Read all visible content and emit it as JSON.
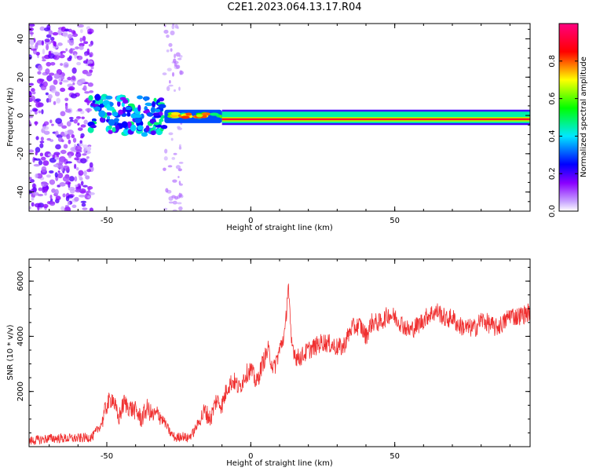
{
  "page": {
    "title": "C2E1.2023.064.13.17.R04"
  },
  "chart_data": [
    {
      "type": "heatmap",
      "xlabel": "Height of straight line (km)",
      "ylabel": "Frequency (Hz)",
      "xlim": [
        -77,
        97
      ],
      "ylim": [
        -50,
        48
      ],
      "xticks": [
        -50,
        0,
        50
      ],
      "yticks": [
        -40,
        -20,
        0,
        20,
        40
      ],
      "grid": false,
      "colorbar": {
        "label": "Normalized spectral amplitude",
        "range": [
          0.0,
          1.0
        ],
        "ticks": [
          "0.0",
          "0.2",
          "0.4",
          "0.6",
          "0.8"
        ],
        "tick_values": [
          0.0,
          0.2,
          0.4,
          0.6,
          0.8
        ],
        "colormap": [
          "#ffffff",
          "#8a00ff",
          "#0000ff",
          "#00ffff",
          "#00ff00",
          "#ffff00",
          "#ff0000",
          "#ff0080"
        ]
      },
      "regions": [
        {
          "x": [
            -77,
            -55
          ],
          "y": [
            -50,
            48
          ],
          "amplitude": 0.05,
          "note": "scattered low-amplitude noise"
        },
        {
          "x": [
            -56,
            -30
          ],
          "y": [
            -10,
            10
          ],
          "amplitude": 0.35,
          "note": "patchy mixed amplitude"
        },
        {
          "x": [
            -30,
            -10
          ],
          "y": [
            -4,
            3
          ],
          "amplitude": 0.7
        },
        {
          "x": [
            -10,
            97
          ],
          "y": [
            -4,
            2
          ],
          "amplitude": 0.9,
          "center_y": -2,
          "note": "narrow band near 0 Hz"
        }
      ]
    },
    {
      "type": "line",
      "xlabel": "Height of straight line (km)",
      "ylabel": "SNR (10 * v/v)",
      "xlim": [
        -77,
        97
      ],
      "ylim": [
        0,
        6800
      ],
      "xticks": [
        -50,
        0,
        50
      ],
      "yticks": [
        2000,
        4000,
        6000
      ],
      "grid": false,
      "series": [
        {
          "color": "#f03030",
          "x": [
            -77,
            -70,
            -60,
            -55,
            -52,
            -50,
            -48,
            -46,
            -44,
            -42,
            -40,
            -38,
            -36,
            -34,
            -32,
            -30,
            -28,
            -26,
            -24,
            -22,
            -20,
            -18,
            -16,
            -14,
            -12,
            -10,
            -8,
            -6,
            -4,
            -2,
            0,
            2,
            4,
            6,
            8,
            10,
            12,
            13,
            14,
            16,
            18,
            20,
            22,
            25,
            28,
            30,
            32,
            35,
            38,
            40,
            42,
            45,
            48,
            50,
            52,
            55,
            58,
            60,
            62,
            65,
            68,
            70,
            72,
            75,
            78,
            80,
            82,
            85,
            88,
            90,
            92,
            95,
            97
          ],
          "values": [
            200,
            300,
            300,
            350,
            800,
            1500,
            1800,
            1000,
            1600,
            1400,
            1300,
            1000,
            1400,
            1100,
            1200,
            900,
            500,
            300,
            400,
            300,
            500,
            900,
            1300,
            1000,
            1700,
            1500,
            2200,
            2400,
            2100,
            2600,
            2800,
            2300,
            3000,
            3500,
            2800,
            3500,
            4200,
            6000,
            3800,
            3200,
            3300,
            3500,
            3600,
            3800,
            3700,
            3600,
            3600,
            4300,
            4400,
            4000,
            4500,
            4500,
            4800,
            4700,
            4500,
            4200,
            4400,
            4600,
            4800,
            4900,
            4600,
            4700,
            4400,
            4300,
            4300,
            4600,
            4500,
            4300,
            4500,
            4800,
            4700,
            4800,
            4900
          ],
          "noise_amplitude": 350
        }
      ]
    }
  ]
}
